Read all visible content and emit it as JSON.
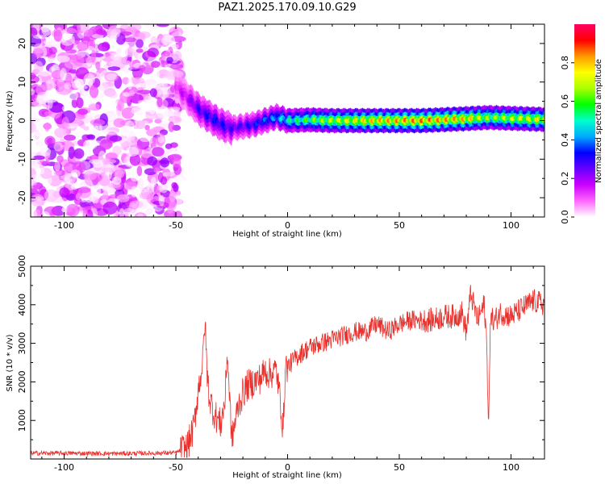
{
  "title": "PAZ1.2025.170.09.10.G29",
  "chart_data": [
    {
      "type": "heatmap",
      "title": "PAZ1.2025.170.09.10.G29",
      "xlabel": "Height of straight line (km)",
      "ylabel": "Frequency (Hz)",
      "xlim": [
        -115,
        115
      ],
      "ylim": [
        -25,
        25
      ],
      "xticks": [
        -100,
        -50,
        0,
        50,
        100
      ],
      "yticks": [
        -20,
        -10,
        0,
        10,
        20
      ],
      "colorbar": {
        "label": "Normalized spectral amplitude",
        "range": [
          0,
          1
        ],
        "ticks": [
          0.0,
          0.2,
          0.4,
          0.6,
          0.8
        ],
        "colormap": "rainbow-white-to-magenta-to-red",
        "colors": [
          "#ffffff",
          "#ff66ff",
          "#cc00ff",
          "#6600ff",
          "#0000ff",
          "#00aaff",
          "#00ffcc",
          "#00ff00",
          "#aaff00",
          "#ffff00",
          "#ff9900",
          "#ff0000",
          "#ff0066"
        ]
      },
      "noise_region_x": [
        -115,
        -48
      ],
      "ridge": {
        "x": [
          -50,
          -45,
          -40,
          -35,
          -30,
          -25,
          -20,
          -15,
          -10,
          -5,
          0,
          10,
          20,
          40,
          60,
          80,
          90,
          100,
          115
        ],
        "frequency_hz": [
          9,
          6,
          3,
          1,
          -1,
          -2,
          -1.5,
          -1,
          0,
          1,
          0,
          0.2,
          0,
          0,
          0,
          0.5,
          0.8,
          0.6,
          0.3
        ],
        "amplitude": [
          0.15,
          0.2,
          0.3,
          0.35,
          0.35,
          0.3,
          0.3,
          0.35,
          0.4,
          0.45,
          0.55,
          0.65,
          0.75,
          0.85,
          0.9,
          0.85,
          0.7,
          0.75,
          0.8
        ]
      }
    },
    {
      "type": "line",
      "xlabel": "Height of straight line (km)",
      "ylabel": "SNR (10 * v/v)",
      "xlim": [
        -115,
        115
      ],
      "ylim": [
        0,
        5000
      ],
      "xticks": [
        -100,
        -50,
        0,
        50,
        100
      ],
      "yticks": [
        1000,
        2000,
        3000,
        4000,
        5000
      ],
      "series": [
        {
          "color": "#e8302c",
          "x": [
            -115,
            -100,
            -80,
            -60,
            -50,
            -45,
            -42,
            -40,
            -38,
            -37,
            -36,
            -35,
            -33,
            -30,
            -28,
            -27,
            -25,
            -22,
            -20,
            -18,
            -15,
            -12,
            -10,
            -8,
            -5,
            -3,
            -2,
            -1,
            0,
            5,
            10,
            15,
            20,
            25,
            30,
            35,
            40,
            45,
            50,
            55,
            60,
            65,
            70,
            75,
            78,
            80,
            82,
            85,
            88,
            89,
            90,
            91,
            92,
            95,
            100,
            105,
            110,
            115
          ],
          "y": [
            150,
            150,
            140,
            150,
            160,
            300,
            800,
            1800,
            2500,
            3600,
            2200,
            1600,
            1200,
            900,
            1500,
            2800,
            500,
            1400,
            1700,
            1900,
            2000,
            2100,
            2300,
            2200,
            2300,
            1400,
            700,
            2400,
            2400,
            2700,
            2900,
            3000,
            3100,
            3200,
            3300,
            3300,
            3500,
            3300,
            3500,
            3600,
            3600,
            3600,
            3700,
            3700,
            3800,
            3300,
            4300,
            3600,
            4000,
            3200,
            900,
            4000,
            3500,
            3800,
            3700,
            3900,
            4100,
            4000
          ]
        }
      ]
    }
  ]
}
